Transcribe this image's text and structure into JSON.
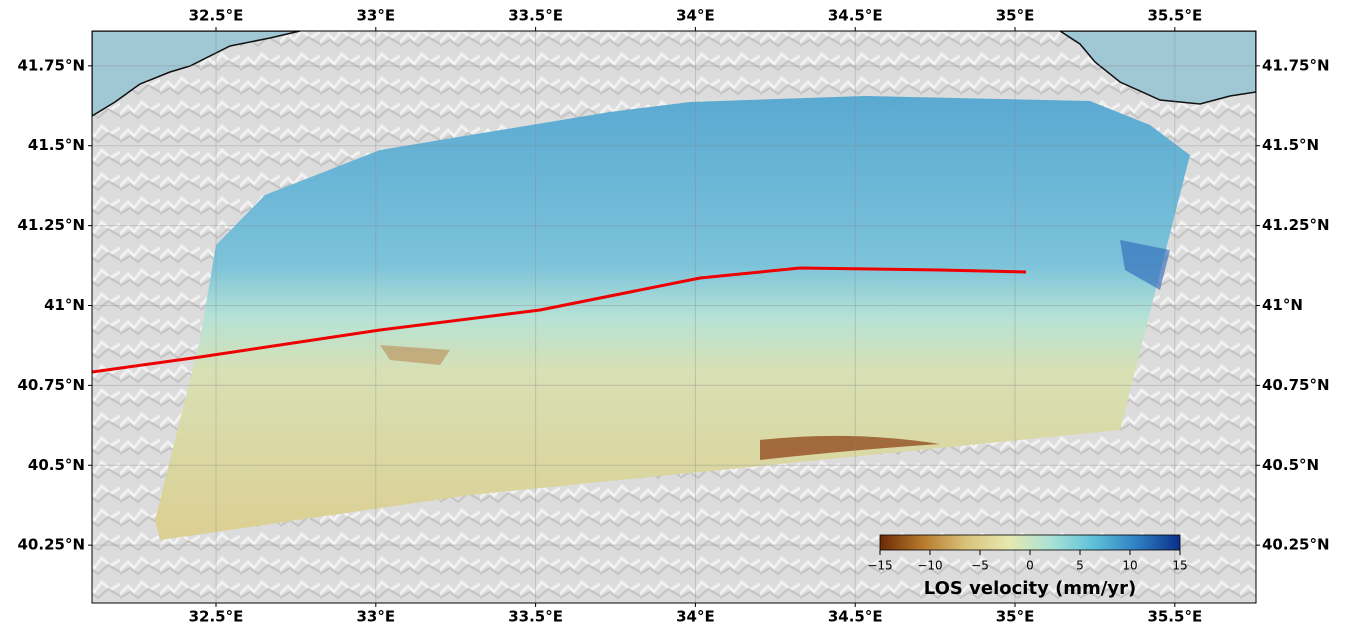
{
  "map": {
    "xlim": [
      32.112,
      35.754
    ],
    "ylim": [
      40.069,
      41.859
    ],
    "xticks": [
      {
        "value": 32.5,
        "label": "32.5°E"
      },
      {
        "value": 33,
        "label": "33°E"
      },
      {
        "value": 33.5,
        "label": "33.5°E"
      },
      {
        "value": 34,
        "label": "34°E"
      },
      {
        "value": 34.5,
        "label": "34.5°E"
      },
      {
        "value": 35,
        "label": "35°E"
      },
      {
        "value": 35.5,
        "label": "35.5°E"
      }
    ],
    "yticks": [
      {
        "value": 40.25,
        "label": "40.25°N"
      },
      {
        "value": 40.5,
        "label": "40.5°N"
      },
      {
        "value": 40.75,
        "label": "40.75°N"
      },
      {
        "value": 41,
        "label": "41°N"
      },
      {
        "value": 41.25,
        "label": "41.25°N"
      },
      {
        "value": 41.5,
        "label": "41.5°N"
      },
      {
        "value": 41.75,
        "label": "41.75°N"
      }
    ],
    "grid": true,
    "colorbar": {
      "label": "LOS velocity (mm/yr)",
      "clim": [
        -15,
        15
      ],
      "ticks": [
        {
          "value": -15,
          "label": "−15"
        },
        {
          "value": -10,
          "label": "−10"
        },
        {
          "value": -5,
          "label": "−5"
        },
        0,
        5,
        10,
        15
      ],
      "colors": [
        "#6b2a04",
        "#b77a2c",
        "#d9c27a",
        "#e6e8b0",
        "#a9e2d6",
        "#5cc0d8",
        "#2f7fc2",
        "#0a2f8a"
      ]
    },
    "fault_color": "#ee0000",
    "sea_color": "#9fc7d4"
  }
}
